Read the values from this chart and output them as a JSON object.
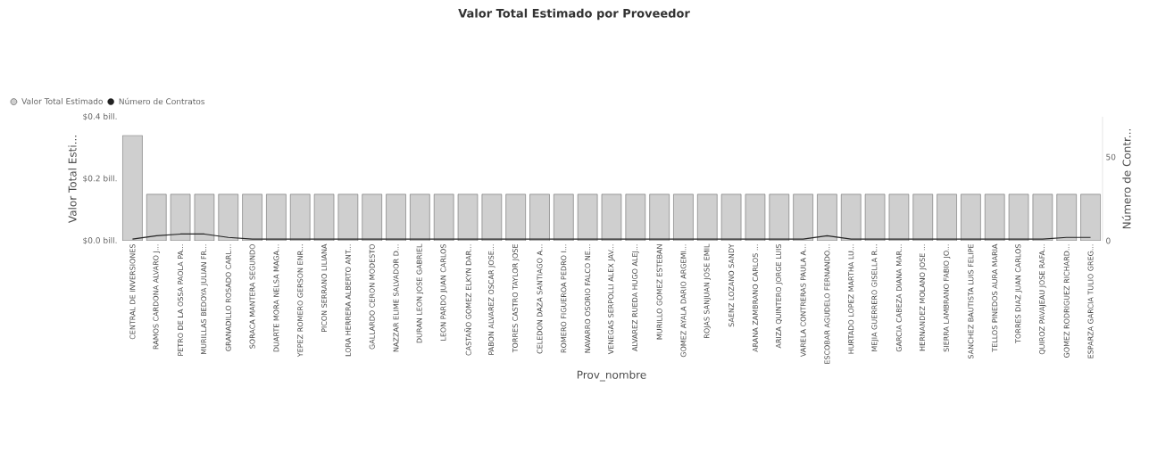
{
  "chart_data": {
    "type": "bar",
    "title": "Valor Total Estimado por Proveedor",
    "xlabel": "Prov_nombre",
    "ylabel": "Valor Total Esti...",
    "y2label": "Número de Contr...",
    "categories": [
      "CENTRAL DE INVERSIONES",
      "RAMOS CARDONA ALVARO J...",
      "PETRO DE LA OSSA PAOLA PA...",
      "MURILLAS BEDOYA JULIAN FR...",
      "GRANADILLO ROSADO CARL...",
      "SORACA MANTERA SEGUNDO",
      "DUARTE MORA NELSA MAGA...",
      "YEPEZ ROMERO GERSON ENR...",
      "PICON SERRANO LILIANA",
      "LORA HERRERA ALBERTO ANT...",
      "GALLARDO CERON MODESTO",
      "NAZZAR ELIME SALVADOR D...",
      "DURAN LEON JOSE GABRIEL",
      "LEON PARDO JUAN CARLOS",
      "CASTAÑO GOMEZ ELKYN DAR...",
      "PABON ALVAREZ OSCAR JOSE...",
      "TORRES CASTRO TAYLOR JOSE",
      "CELEDON DAZA SANTIAGO A...",
      "ROMERO FIGUEROA PEDRO I...",
      "NAVARRO OSORIO FALCO NE...",
      "VENEGAS SERPOLLI ALEX JAV...",
      "ALVAREZ RUEDA HUGO ALEJ...",
      "MURILLO GOMEZ ESTEBAN",
      "GOMEZ AYALA DARIO ARGEMI...",
      "ROJAS SANJUAN JOSE EMIL",
      "SAENZ LOZANO SANDY",
      "ARANA ZAMBRANO CARLOS ...",
      "ARIZA QUINTERO JORGE LUIS",
      "VARELA CONTRERAS PAULA A...",
      "ESCOBAR AGUDELO FERNANDO...",
      "HURTADO LOPEZ MARTHA LU...",
      "MEJIA GUERRERO GISELLA R...",
      "GARCIA CABEZA DIANA MAR...",
      "HERNANDEZ MOLANO JOSE ...",
      "SIERRA LAMBRANO FABIO JO...",
      "SANCHEZ BAUTISTA LUIS FELIPE",
      "TELLOS PINEDOS AURA MARIA",
      "TORRES DIAZ JUAN CARLOS",
      "QUIROZ PAVAJEAU JOSE RAFA...",
      "GOMEZ RODRIGUEZ RICHARD...",
      "ESPARZA GARCIA TULIO GREG..."
    ],
    "series": [
      {
        "name": "Valor Total Estimado",
        "color": "#cfcfcf",
        "values": [
          0.34,
          0.15,
          0.15,
          0.15,
          0.15,
          0.15,
          0.15,
          0.15,
          0.15,
          0.15,
          0.15,
          0.15,
          0.15,
          0.15,
          0.15,
          0.15,
          0.15,
          0.15,
          0.15,
          0.15,
          0.15,
          0.15,
          0.15,
          0.15,
          0.15,
          0.15,
          0.15,
          0.15,
          0.15,
          0.15,
          0.15,
          0.15,
          0.15,
          0.15,
          0.15,
          0.15,
          0.15,
          0.15,
          0.15,
          0.15,
          0.15
        ]
      },
      {
        "name": "Número de Contratos",
        "type": "line",
        "axis": "y2",
        "color": "#222222",
        "values": [
          1,
          3,
          4,
          4,
          2,
          1,
          1,
          1,
          1,
          1,
          1,
          1,
          1,
          1,
          1,
          1,
          1,
          1,
          1,
          1,
          1,
          1,
          1,
          1,
          1,
          1,
          1,
          1,
          1,
          3,
          1,
          1,
          1,
          1,
          1,
          1,
          1,
          1,
          1,
          2,
          2
        ]
      }
    ],
    "ylim": [
      0,
      0.4
    ],
    "yticks": [
      {
        "value": 0,
        "label": "$0.0 bill."
      },
      {
        "value": 0.2,
        "label": "$0.2 bill."
      },
      {
        "value": 0.4,
        "label": "$0.4 bill."
      }
    ],
    "y2lim": [
      0,
      74
    ],
    "y2ticks": [
      0,
      50
    ],
    "legend": "top left"
  }
}
